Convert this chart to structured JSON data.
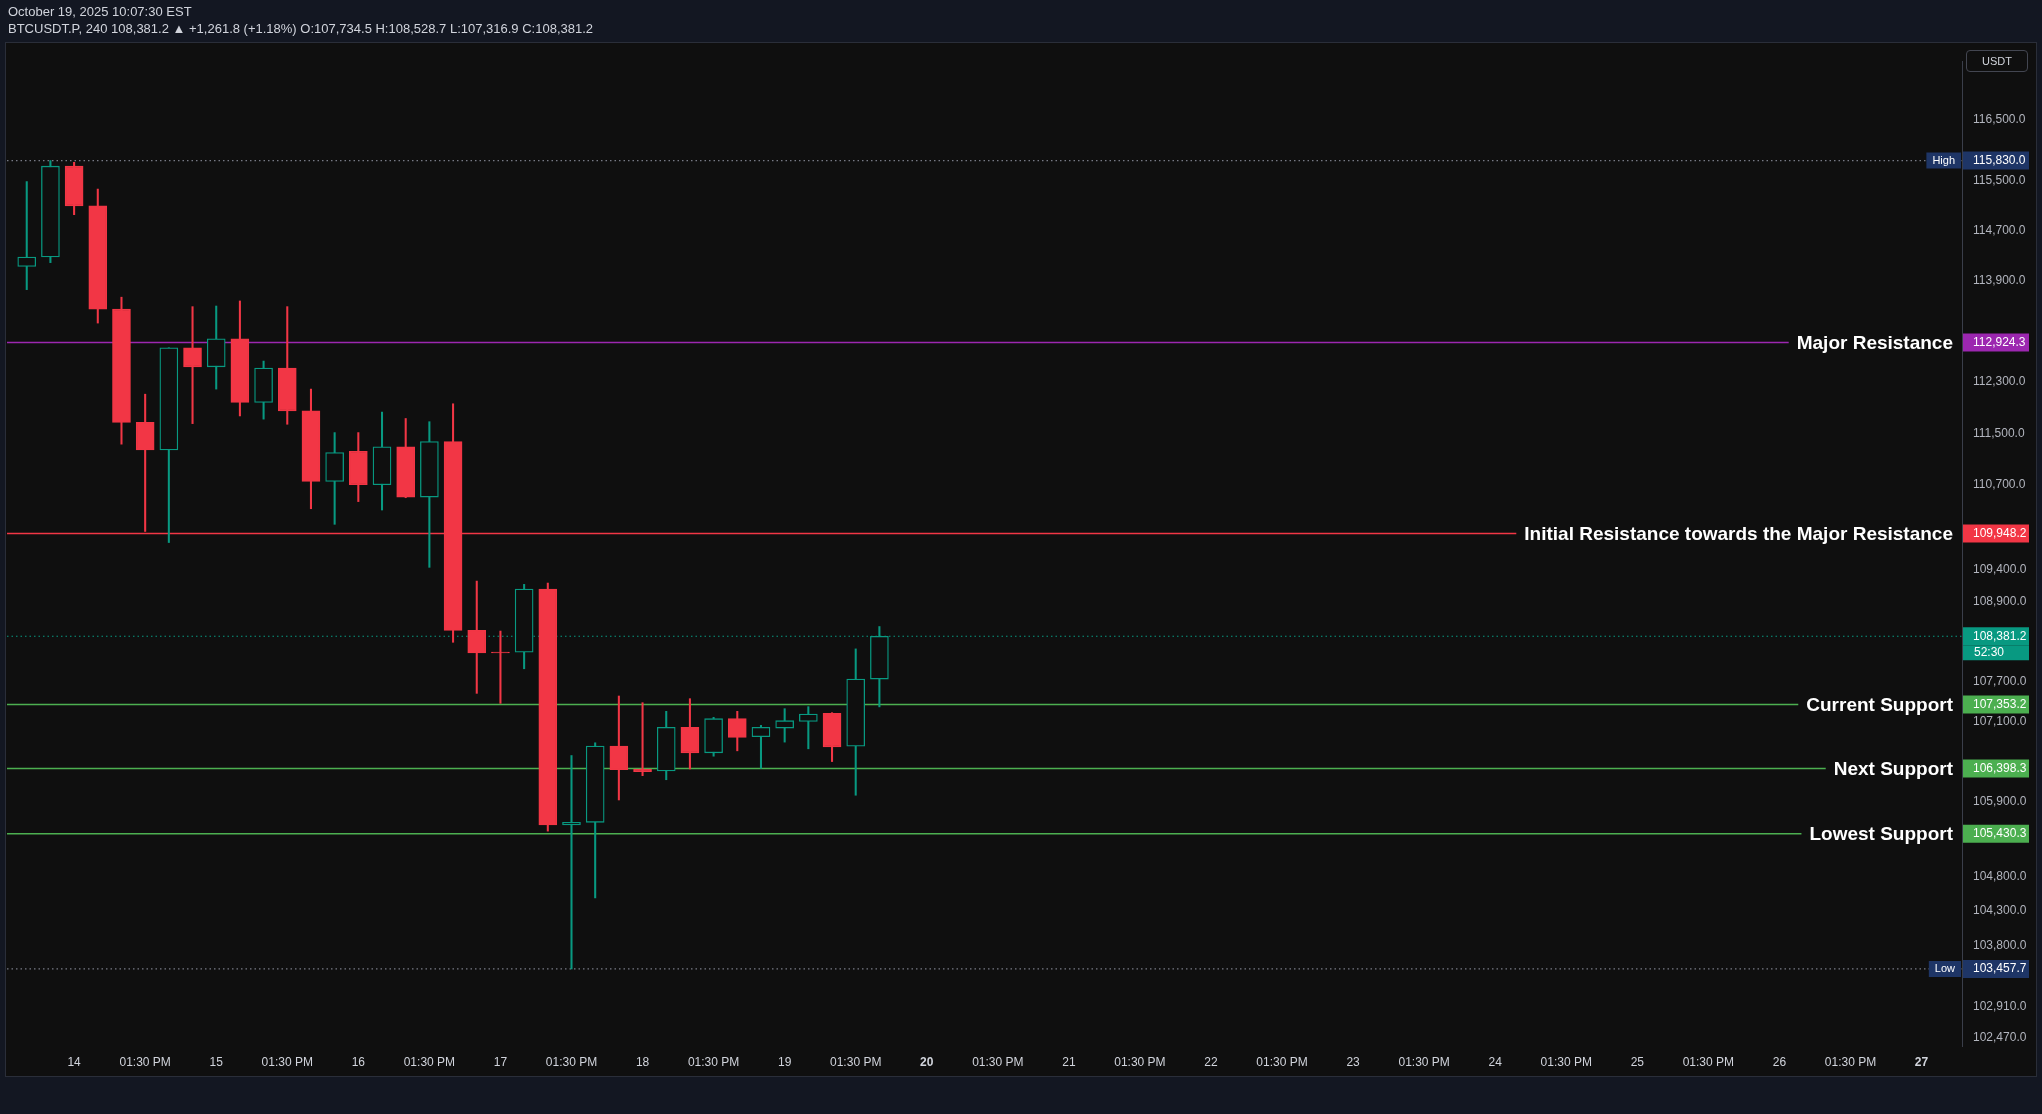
{
  "chart_data": {
    "type": "candlestick",
    "title": "October 19, 2025 10:07:30 EST",
    "subtitle": "BTCUSDT.P, 240 108,381.2 ▲ +1,261.8 (+1.18%) O:107,734.5 H:108,528.7 L:107,316.9 C:108,381.2",
    "ylabel": "USDT",
    "x": [
      "2025-10-13T17:30",
      "2025-10-13T21:30",
      "2025-10-14T01:30",
      "2025-10-14T05:30",
      "2025-10-14T09:30",
      "2025-10-14T13:30",
      "2025-10-14T17:30",
      "2025-10-14T21:30",
      "2025-10-15T01:30",
      "2025-10-15T05:30",
      "2025-10-15T09:30",
      "2025-10-15T13:30",
      "2025-10-15T17:30",
      "2025-10-15T21:30",
      "2025-10-16T01:30",
      "2025-10-16T05:30",
      "2025-10-16T09:30",
      "2025-10-16T13:30",
      "2025-10-16T17:30",
      "2025-10-16T21:30",
      "2025-10-17T01:30",
      "2025-10-17T05:30",
      "2025-10-17T09:30",
      "2025-10-17T13:30",
      "2025-10-17T17:30",
      "2025-10-17T21:30",
      "2025-10-18T01:30",
      "2025-10-18T05:30",
      "2025-10-18T09:30",
      "2025-10-18T13:30",
      "2025-10-18T17:30",
      "2025-10-18T21:30",
      "2025-10-19T01:30",
      "2025-10-19T05:30",
      "2025-10-19T09:30",
      "2025-10-19T13:30",
      "2025-10-19T17:30"
    ],
    "ohlc": [
      [
        114130,
        115490,
        113760,
        114280
      ],
      [
        114280,
        115830,
        114190,
        115740
      ],
      [
        115740,
        115800,
        114960,
        115100
      ],
      [
        115100,
        115370,
        113230,
        113450
      ],
      [
        113450,
        113640,
        111330,
        111670
      ],
      [
        111670,
        112110,
        109980,
        111240
      ],
      [
        111240,
        112840,
        109810,
        112840
      ],
      [
        112840,
        113490,
        111650,
        112540
      ],
      [
        112540,
        113500,
        112190,
        112980
      ],
      [
        112980,
        113580,
        111770,
        111980
      ],
      [
        111980,
        112630,
        111720,
        112520
      ],
      [
        112520,
        113490,
        111640,
        111850
      ],
      [
        111850,
        112190,
        110330,
        110750
      ],
      [
        110750,
        111510,
        110090,
        111200
      ],
      [
        111220,
        111510,
        110440,
        110700
      ],
      [
        110700,
        111830,
        110310,
        111290
      ],
      [
        111290,
        111730,
        110500,
        110510
      ],
      [
        110510,
        111680,
        109430,
        111370
      ],
      [
        111370,
        111960,
        108290,
        108470
      ],
      [
        108470,
        109220,
        107520,
        108130
      ],
      [
        108140,
        108460,
        107370,
        108130
      ],
      [
        108140,
        109170,
        107890,
        109100
      ],
      [
        109100,
        109190,
        105470,
        105560
      ],
      [
        105560,
        106590,
        103457.7,
        105600
      ],
      [
        105600,
        106780,
        104490,
        106730
      ],
      [
        106730,
        107480,
        105930,
        106380
      ],
      [
        106390,
        107380,
        106290,
        106350
      ],
      [
        106360,
        107250,
        106230,
        107010
      ],
      [
        107010,
        107440,
        106390,
        106630
      ],
      [
        106630,
        107160,
        106580,
        107140
      ],
      [
        107140,
        107250,
        106660,
        106860
      ],
      [
        106870,
        107040,
        106400,
        107010
      ],
      [
        107000,
        107290,
        106790,
        107110
      ],
      [
        107100,
        107320,
        106690,
        107210
      ],
      [
        107220,
        107230,
        106500,
        106720
      ],
      [
        106730,
        108190,
        106000,
        107734.5
      ],
      [
        107734.5,
        108528.7,
        107316.9,
        108381.2
      ]
    ],
    "colors": [
      "#089981",
      "#089981",
      "#f23645",
      "#f23645",
      "#f23645",
      "#f23645",
      "#089981",
      "#f23645",
      "#089981",
      "#f23645",
      "#089981",
      "#f23645",
      "#f23645",
      "#089981",
      "#f23645",
      "#089981",
      "#f23645",
      "#089981",
      "#f23645",
      "#f23645",
      "#f23645",
      "#089981",
      "#f23645",
      "#089981",
      "#089981",
      "#f23645",
      "#f23645",
      "#089981",
      "#f23645",
      "#089981",
      "#f23645",
      "#089981",
      "#089981",
      "#089981",
      "#f23645",
      "#089981",
      "#089981"
    ],
    "log": true,
    "grid": false,
    "ylim": [
      102350,
      117450
    ],
    "yticks": [
      {
        "value": 116500,
        "label": "116,500.0"
      },
      {
        "value": 115830,
        "label": "115,830.0"
      },
      {
        "value": 115500,
        "label": "115,500.0"
      },
      {
        "value": 114700,
        "label": "114,700.0"
      },
      {
        "value": 113900,
        "label": "113,900.0"
      },
      {
        "value": 112924.3,
        "label": "112,924.3"
      },
      {
        "value": 112300,
        "label": "112,300.0"
      },
      {
        "value": 111500,
        "label": "111,500.0"
      },
      {
        "value": 110700,
        "label": "110,700.0"
      },
      {
        "value": 109948.2,
        "label": "109,948.2"
      },
      {
        "value": 109400,
        "label": "109,400.0"
      },
      {
        "value": 108900,
        "label": "108,900.0"
      },
      {
        "value": 108381.2,
        "label": "108,381.2"
      },
      {
        "value": 107700,
        "label": "107,700.0"
      },
      {
        "value": 107353.2,
        "label": "107,353.2"
      },
      {
        "value": 107100,
        "label": "107,100.0"
      },
      {
        "value": 106398.3,
        "label": "106,398.3"
      },
      {
        "value": 105900,
        "label": "105,900.0"
      },
      {
        "value": 105430.3,
        "label": "105,430.3"
      },
      {
        "value": 104800,
        "label": "104,800.0"
      },
      {
        "value": 104300,
        "label": "104,300.0"
      },
      {
        "value": 103800,
        "label": "103,800.0"
      },
      {
        "value": 103457.7,
        "label": "103,457.7"
      },
      {
        "value": 102910,
        "label": "102,910.0"
      },
      {
        "value": 102470,
        "label": "102,470.0"
      }
    ],
    "xlim": [
      "2025-10-13T14:10",
      "2025-10-27T08:20"
    ],
    "xticks": [
      {
        "value": "2025-10-14T01:30",
        "label": "14"
      },
      {
        "value": "2025-10-14T13:30",
        "label": "01:30 PM"
      },
      {
        "value": "2025-10-15T01:30",
        "label": "15"
      },
      {
        "value": "2025-10-15T13:30",
        "label": "01:30 PM"
      },
      {
        "value": "2025-10-16T01:30",
        "label": "16"
      },
      {
        "value": "2025-10-16T13:30",
        "label": "01:30 PM"
      },
      {
        "value": "2025-10-17T01:30",
        "label": "17"
      },
      {
        "value": "2025-10-17T13:30",
        "label": "01:30 PM"
      },
      {
        "value": "2025-10-18T01:30",
        "label": "18"
      },
      {
        "value": "2025-10-18T13:30",
        "label": "01:30 PM"
      },
      {
        "value": "2025-10-19T01:30",
        "label": "19"
      },
      {
        "value": "2025-10-19T13:30",
        "label": "01:30 PM"
      },
      {
        "value": "2025-10-20T01:30",
        "label": "20"
      },
      {
        "value": "2025-10-20T13:30",
        "label": "01:30 PM"
      },
      {
        "value": "2025-10-21T01:30",
        "label": "21"
      },
      {
        "value": "2025-10-21T13:30",
        "label": "01:30 PM"
      },
      {
        "value": "2025-10-22T01:30",
        "label": "22"
      },
      {
        "value": "2025-10-22T13:30",
        "label": "01:30 PM"
      },
      {
        "value": "2025-10-23T01:30",
        "label": "23"
      },
      {
        "value": "2025-10-23T13:30",
        "label": "01:30 PM"
      },
      {
        "value": "2025-10-24T01:30",
        "label": "24"
      },
      {
        "value": "2025-10-24T13:30",
        "label": "01:30 PM"
      },
      {
        "value": "2025-10-25T01:30",
        "label": "25"
      },
      {
        "value": "2025-10-25T13:30",
        "label": "01:30 PM"
      },
      {
        "value": "2025-10-26T01:30",
        "label": "26"
      },
      {
        "value": "2025-10-26T13:30",
        "label": "01:30 PM"
      },
      {
        "value": "2025-10-27T01:30",
        "label": "27"
      }
    ],
    "ref_lines": [
      {
        "axis": "y",
        "value": 112924.3,
        "label": "Major Resistance",
        "color": "#9c27b0",
        "line_style": "solid"
      },
      {
        "axis": "y",
        "value": 109948.2,
        "label": "Initial Resistance towards the Major Resistance",
        "color": "#f23645",
        "line_style": "solid"
      },
      {
        "axis": "y",
        "value": 107353.2,
        "label": "Current Support",
        "color": "#4caf50",
        "line_style": "solid"
      },
      {
        "axis": "y",
        "value": 106398.3,
        "label": "Next Support",
        "color": "#4caf50",
        "line_style": "solid"
      },
      {
        "axis": "y",
        "value": 105430.3,
        "label": "Lowest Support",
        "color": "#4caf50",
        "line_style": "solid"
      },
      {
        "axis": "y",
        "value": 115830,
        "label": "High",
        "color": "#787b86",
        "line_style": "dotted"
      },
      {
        "axis": "y",
        "value": 103457.7,
        "label": "Low",
        "color": "#787b86",
        "line_style": "dotted"
      },
      {
        "axis": "y",
        "value": 108381.2,
        "color": "#089981",
        "line_style": "dotted"
      }
    ],
    "annotations": [
      "52:30"
    ]
  }
}
